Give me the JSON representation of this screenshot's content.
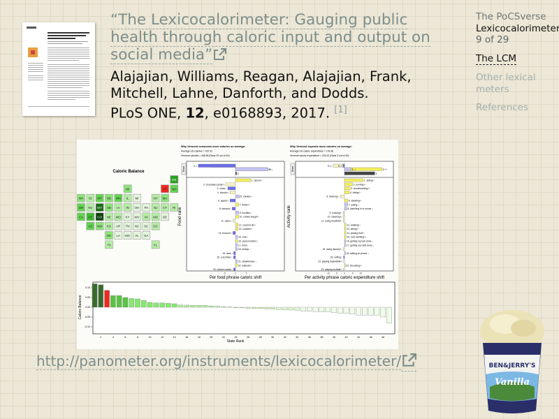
{
  "title": {
    "quote": "“The Lexicocalorimeter: Gauging public health through caloric input and output on social media”",
    "link_icon": "external-link-icon"
  },
  "authors": {
    "names": "Alajajian, Williams, Reagan, Alajajian, Frank, Mitchell, Lahne, Danforth, and Dodds.",
    "journal": "PLoS ONE,",
    "volume": "12",
    "rest": ", e0168893, 2017.",
    "citation": "[1]"
  },
  "sidebar": {
    "course": "The PoCSverse",
    "topic": "Lexicocalorimeter",
    "page": "9 of 29",
    "items": [
      {
        "label": "The LCM",
        "current": true
      },
      {
        "label": "Other lexical meters",
        "current": false
      },
      {
        "label": "References",
        "current": false
      }
    ]
  },
  "url": "http://panometer.org/instruments/lexicocalorimeter/",
  "colors": {
    "link": "#7d8e8c",
    "red_state": "#ee2a22",
    "up_plus": "#f3ee5c",
    "down_plus": "#f6f2c2",
    "up_minus": "#6b6bec",
    "down_minus": "#c4c4f4"
  },
  "figure": {
    "map_title": "Caloric Balance",
    "states": [
      {
        "code": "ME",
        "row": 0,
        "col": 10,
        "shade": 5
      },
      {
        "code": "WI",
        "row": 1,
        "col": 5,
        "shade": 2
      },
      {
        "code": "VT",
        "row": 1,
        "col": 9,
        "shade": -1
      },
      {
        "code": "NH",
        "row": 1,
        "col": 10,
        "shade": 3
      },
      {
        "code": "WA",
        "row": 2,
        "col": 0,
        "shade": 2
      },
      {
        "code": "ID",
        "row": 2,
        "col": 1,
        "shade": 1
      },
      {
        "code": "MT",
        "row": 2,
        "col": 2,
        "shade": 3
      },
      {
        "code": "ND",
        "row": 2,
        "col": 3,
        "shade": 2
      },
      {
        "code": "MN",
        "row": 2,
        "col": 4,
        "shade": 3
      },
      {
        "code": "IL",
        "row": 2,
        "col": 5,
        "shade": 1
      },
      {
        "code": "MI",
        "row": 2,
        "col": 6,
        "shade": 0
      },
      {
        "code": "NY",
        "row": 2,
        "col": 8,
        "shade": 1
      },
      {
        "code": "MA",
        "row": 2,
        "col": 9,
        "shade": 2
      },
      {
        "code": "OR",
        "row": 3,
        "col": 0,
        "shade": 3
      },
      {
        "code": "NV",
        "row": 3,
        "col": 1,
        "shade": 1
      },
      {
        "code": "WY",
        "row": 3,
        "col": 2,
        "shade": 6
      },
      {
        "code": "SD",
        "row": 3,
        "col": 3,
        "shade": 2
      },
      {
        "code": "IA",
        "row": 3,
        "col": 4,
        "shade": 1
      },
      {
        "code": "IN",
        "row": 3,
        "col": 5,
        "shade": 1
      },
      {
        "code": "OH",
        "row": 3,
        "col": 6,
        "shade": 0
      },
      {
        "code": "PA",
        "row": 3,
        "col": 7,
        "shade": 0
      },
      {
        "code": "NJ",
        "row": 3,
        "col": 8,
        "shade": 1
      },
      {
        "code": "CT",
        "row": 3,
        "col": 9,
        "shade": 1
      },
      {
        "code": "RI",
        "row": 3,
        "col": 10,
        "shade": 1
      },
      {
        "code": "CA",
        "row": 4,
        "col": 0,
        "shade": 3
      },
      {
        "code": "UT",
        "row": 4,
        "col": 1,
        "shade": 4
      },
      {
        "code": "CO",
        "row": 4,
        "col": 2,
        "shade": 7
      },
      {
        "code": "NE",
        "row": 4,
        "col": 3,
        "shade": 1
      },
      {
        "code": "MO",
        "row": 4,
        "col": 4,
        "shade": 1
      },
      {
        "code": "KY",
        "row": 4,
        "col": 5,
        "shade": 0
      },
      {
        "code": "WV",
        "row": 4,
        "col": 6,
        "shade": 0
      },
      {
        "code": "VA",
        "row": 4,
        "col": 7,
        "shade": 1
      },
      {
        "code": "MD",
        "row": 4,
        "col": 8,
        "shade": 1
      },
      {
        "code": "DE",
        "row": 4,
        "col": 9,
        "shade": 0
      },
      {
        "code": "AZ",
        "row": 5,
        "col": 1,
        "shade": 3
      },
      {
        "code": "NM",
        "row": 5,
        "col": 2,
        "shade": 2
      },
      {
        "code": "KS",
        "row": 5,
        "col": 3,
        "shade": 1
      },
      {
        "code": "AR",
        "row": 5,
        "col": 4,
        "shade": 0
      },
      {
        "code": "TN",
        "row": 5,
        "col": 5,
        "shade": 0
      },
      {
        "code": "NC",
        "row": 5,
        "col": 6,
        "shade": 0
      },
      {
        "code": "SC",
        "row": 5,
        "col": 7,
        "shade": 0
      },
      {
        "code": "DC",
        "row": 5,
        "col": 8,
        "shade": 1
      },
      {
        "code": "OK",
        "row": 6,
        "col": 3,
        "shade": 2
      },
      {
        "code": "LA",
        "row": 6,
        "col": 4,
        "shade": 0
      },
      {
        "code": "MS",
        "row": 6,
        "col": 5,
        "shade": 0
      },
      {
        "code": "AL",
        "row": 6,
        "col": 6,
        "shade": 0
      },
      {
        "code": "GA",
        "row": 6,
        "col": 7,
        "shade": 0
      },
      {
        "code": "TX",
        "row": 7,
        "col": 3,
        "shade": 1
      },
      {
        "code": "FL",
        "row": 7,
        "col": 8,
        "shade": 1
      }
    ],
    "food": {
      "heading": "Why Vermont consumes more calories on average:",
      "line1": "Average US calories = 267.92",
      "line2": "Vermont calories = 268.86 (Rank 29 out of 49)",
      "reset": "Reset",
      "ylabel": "Food rank",
      "xlabel": "Per food phrase caloric shift",
      "ticks": [
        -5,
        0,
        5
      ],
      "sums": [
        {
          "label": "Σ+↓",
          "value": -11,
          "kind": "down_plus"
        },
        {
          "label": "Σ+↑",
          "value": 14,
          "kind": "up_plus"
        },
        {
          "label": "Σ-↑",
          "value": -17,
          "kind": "up_minus"
        },
        {
          "label": "Σ-↓",
          "value": 15,
          "kind": "down_minus"
        },
        {
          "label": "Σ",
          "value": 0.5,
          "kind": "total"
        }
      ],
      "items": [
        {
          "label": "1. bacon+↑",
          "value": 7,
          "kind": "up_plus"
        },
        {
          "label": "2. chocolate candy+↓",
          "value": -4.5,
          "kind": "down_plus"
        },
        {
          "label": "3. onion-↑",
          "value": -3.5,
          "kind": "up_minus"
        },
        {
          "label": "4. donuts+↓",
          "value": -2.5,
          "kind": "down_plus"
        },
        {
          "label": "5. chicken-↓",
          "value": 2,
          "kind": "down_minus"
        },
        {
          "label": "6. apples-↑",
          "value": -2.5,
          "kind": "up_minus"
        },
        {
          "label": "7. butter+↑",
          "value": 1.5,
          "kind": "up_plus"
        },
        {
          "label": "8. banana-↑",
          "value": -1.5,
          "kind": "up_minus"
        },
        {
          "label": "9. noodles-↓",
          "value": 1.5,
          "kind": "down_minus"
        },
        {
          "label": "10. cookie dough+↑",
          "value": 1.5,
          "kind": "up_plus"
        },
        {
          "label": "11. cake+↓",
          "value": -1.2,
          "kind": "down_plus"
        },
        {
          "label": "12. coconut oil+↑",
          "value": 1.2,
          "kind": "up_plus"
        },
        {
          "label": "13. cookies+↑",
          "value": 1.2,
          "kind": "up_plus"
        },
        {
          "label": "14. broccoli-↑",
          "value": -1.2,
          "kind": "up_minus"
        },
        {
          "label": "15. crab-↓",
          "value": 1,
          "kind": "down_minus"
        },
        {
          "label": "16. peanut butter+↑",
          "value": 1,
          "kind": "up_plus"
        },
        {
          "label": "17. beef-↓",
          "value": 0.9,
          "kind": "down_minus"
        },
        {
          "label": "18. shrimp-↓",
          "value": 0.9,
          "kind": "down_minus"
        },
        {
          "label": "19. beet-↑",
          "value": -0.9,
          "kind": "up_minus"
        },
        {
          "label": "20. cucumber-↑",
          "value": -0.9,
          "kind": "up_minus"
        },
        {
          "label": "21. strawberries-↓",
          "value": 0.9,
          "kind": "down_minus"
        },
        {
          "label": "22. walnuts+↑",
          "value": 0.9,
          "kind": "up_plus"
        },
        {
          "label": "23. chicken salad-↑",
          "value": -0.9,
          "kind": "up_minus"
        }
      ]
    },
    "activity": {
      "heading": "Why Vermont expends more calories on average:",
      "line1": "Average US caloric expenditure = 176.68",
      "line2": "Vermont caloric expenditure = 203.22 (Rank 3 out of 49)",
      "reset": "Reset",
      "ylabel": "Activity rank",
      "xlabel": "Per activity phrase caloric expenditure shift",
      "ticks": [
        -10,
        -5,
        0,
        5,
        10
      ],
      "sums": [
        {
          "label": "Σ+↓",
          "value": -7,
          "kind": "down_plus"
        },
        {
          "label": "Σ+↑",
          "value": 23,
          "kind": "up_plus"
        },
        {
          "label": "Σ-↑",
          "value": -1,
          "kind": "up_minus"
        },
        {
          "label": "Σ-↓",
          "value": 4,
          "kind": "down_minus"
        },
        {
          "label": "Σ",
          "value": 18.6,
          "kind": "total"
        }
      ],
      "items": [
        {
          "label": "1. skiing+↑",
          "value": 11.5,
          "kind": "up_plus"
        },
        {
          "label": "2. running+↑",
          "value": 5,
          "kind": "up_plus"
        },
        {
          "label": "3. snowboarding+↑",
          "value": 3.5,
          "kind": "up_plus"
        },
        {
          "label": "4. hiking+↑",
          "value": 3,
          "kind": "up_plus"
        },
        {
          "label": "5. dancing+↓",
          "value": -2.5,
          "kind": "down_plus"
        },
        {
          "label": "6. sledding+↑",
          "value": 2,
          "kind": "up_plus"
        },
        {
          "label": "7. eating-↓",
          "value": 2,
          "kind": "down_minus"
        },
        {
          "label": "8. watching tv or movie-↓",
          "value": 1.5,
          "kind": "down_minus"
        },
        {
          "label": "9. cooking+↓",
          "value": -0.8,
          "kind": "down_plus"
        },
        {
          "label": "10. cleaning+↓",
          "value": -0.8,
          "kind": "down_plus"
        },
        {
          "label": "11. using treadmill+↓",
          "value": -0.8,
          "kind": "down_plus"
        },
        {
          "label": "12. walking+↑",
          "value": 1,
          "kind": "up_plus"
        },
        {
          "label": "13. biking+↑",
          "value": 1,
          "kind": "up_plus"
        },
        {
          "label": "14. picking fruit+↑",
          "value": 1,
          "kind": "up_plus"
        },
        {
          "label": "15. rock climbing+↑",
          "value": 1,
          "kind": "up_plus"
        },
        {
          "label": "16. getting my hair done-↓",
          "value": 0.8,
          "kind": "down_minus"
        },
        {
          "label": "17. getting my nails done-↓",
          "value": 0.8,
          "kind": "down_minus"
        },
        {
          "label": "18. doing laundry+↓",
          "value": -0.7,
          "kind": "down_plus"
        },
        {
          "label": "19. talking on phone-↓",
          "value": 0.7,
          "kind": "down_minus"
        },
        {
          "label": "20. writing-↑",
          "value": -0.6,
          "kind": "up_minus"
        },
        {
          "label": "21. playing basketball+↓",
          "value": -0.6,
          "kind": "down_plus"
        },
        {
          "label": "22. shoveling+↑",
          "value": 0.6,
          "kind": "up_plus"
        },
        {
          "label": "23. playing football+↓",
          "value": -0.6,
          "kind": "down_plus"
        }
      ]
    },
    "balance_chart": {
      "ylabel": "Caloric Balance",
      "xlabel": "State Rank",
      "yticks": [
        "0.10",
        "0.05",
        "0.00",
        "-0.05",
        "-0.10"
      ],
      "xticks": [
        2,
        4,
        6,
        8,
        10,
        12,
        14,
        16,
        18,
        20,
        22,
        24,
        26,
        28,
        30,
        32,
        34,
        36,
        38,
        40,
        42,
        44,
        46,
        48
      ],
      "highlight_rank": 3,
      "values": [
        0.12,
        0.115,
        0.087,
        0.06,
        0.06,
        0.05,
        0.045,
        0.043,
        0.035,
        0.025,
        0.022,
        0.022,
        0.02,
        0.018,
        0.012,
        0.011,
        0.01,
        0.01,
        0.01,
        0.007,
        0.005,
        0.003,
        0.002,
        0.0,
        -0.003,
        -0.005,
        -0.006,
        -0.007,
        -0.008,
        -0.009,
        -0.012,
        -0.013,
        -0.014,
        -0.015,
        -0.02,
        -0.02,
        -0.022,
        -0.024,
        -0.024,
        -0.028,
        -0.03,
        -0.032,
        -0.035,
        -0.04,
        -0.04,
        -0.04,
        -0.04,
        -0.05,
        -0.08
      ]
    }
  },
  "cup_brand": "BEN & JERRY'S",
  "cup_flavor": "Vanilla"
}
